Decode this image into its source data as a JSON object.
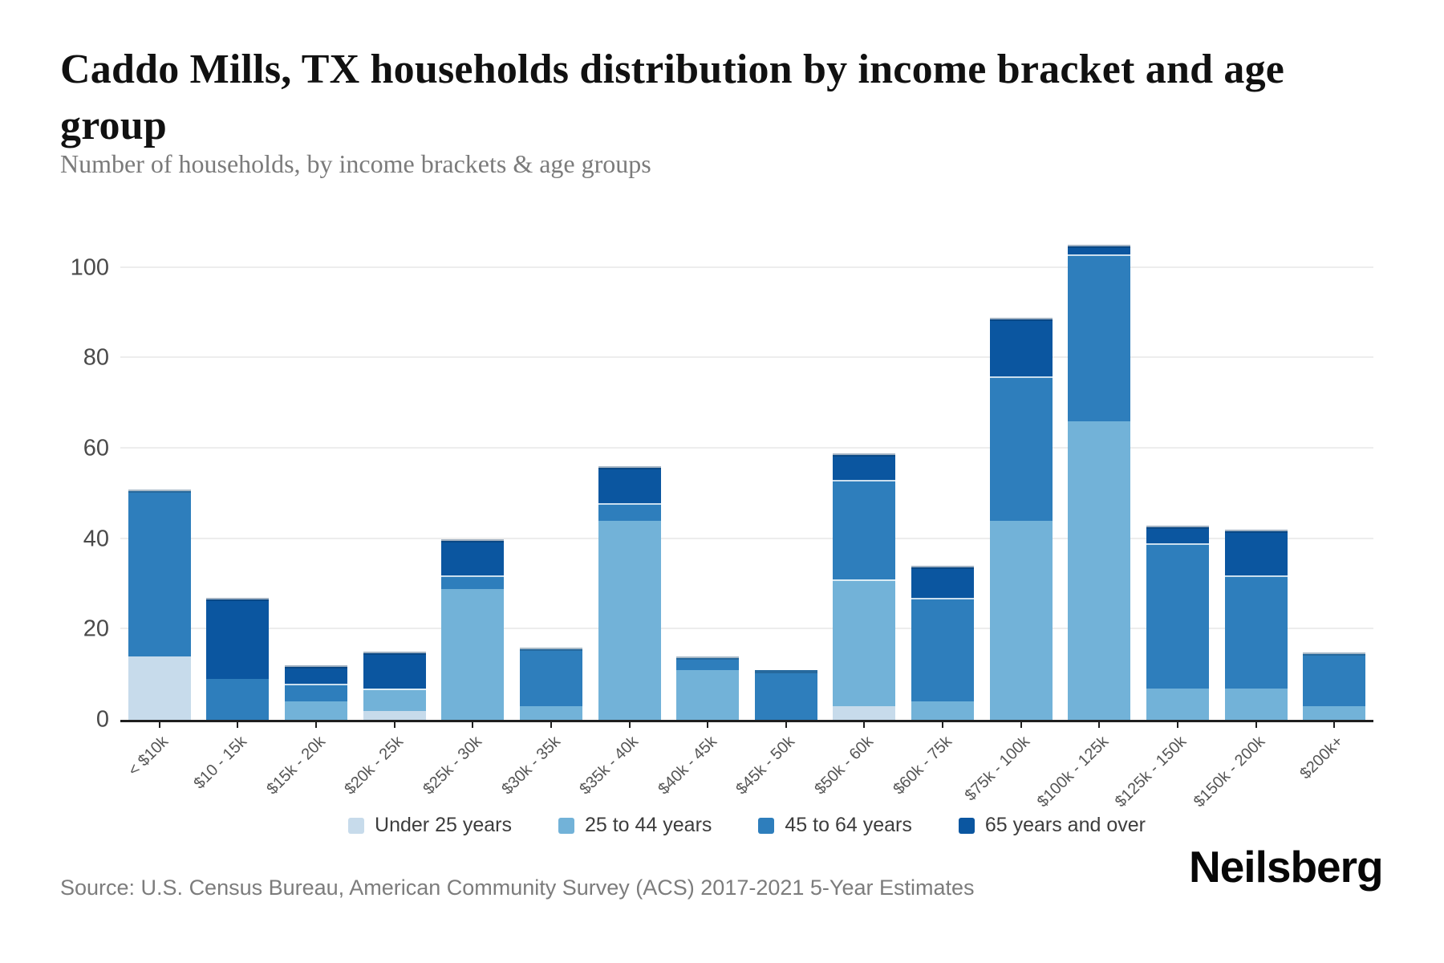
{
  "title": {
    "full": "Caddo Mills, TX households distribution by income bracket and age group",
    "line1": "Caddo Mills, TX households distribution by income bracket and age",
    "line2": "group"
  },
  "subtitle": "Number of households, by income brackets & age groups",
  "source": "Source: U.S. Census Bureau, American Community Survey (ACS) 2017-2021 5-Year Estimates",
  "logo": "Neilsberg",
  "colors": {
    "under_25": "#c7dbeb",
    "age_25_44": "#72b2d8",
    "age_45_64": "#2e7ebc",
    "age_65_over": "#0b56a0",
    "axis_line": "#1f1f1f",
    "gridline": "#ededed",
    "title_text": "#111111",
    "subtitle_text": "#7b7b7b",
    "tick_label": "#4a4a4a",
    "x_label": "#555555",
    "legend_text": "#3d3d3d",
    "source_text": "#7c7c7c"
  },
  "chart_data": {
    "type": "bar",
    "stacked": true,
    "title": "Caddo Mills, TX households distribution by income bracket and age group",
    "subtitle": "Number of households, by income brackets & age groups",
    "xlabel": "",
    "ylabel": "Number of households",
    "grid": true,
    "legend_position": "bottom",
    "ylim": [
      0,
      109
    ],
    "y_ticks": [
      0,
      20,
      40,
      60,
      80,
      100
    ],
    "y_tick_labels": [
      "0",
      "20",
      "40",
      "60",
      "80",
      "100"
    ],
    "categories": [
      "< $10k",
      "$10 - 15k",
      "$15k - 20k",
      "$20k - 25k",
      "$25k - 30k",
      "$30k - 35k",
      "$35k - 40k",
      "$40k - 45k",
      "$45k - 50k",
      "$50k - 60k",
      "$60k - 75k",
      "$75k - 100k",
      "$100k - 125k",
      "$125k - 150k",
      "$150k - 200k",
      "$200k+"
    ],
    "series": [
      {
        "name": "Under 25 years",
        "color": "#c7dbeb",
        "values": [
          14,
          0,
          0,
          2,
          0,
          0,
          0,
          0,
          0,
          3,
          0,
          0,
          0,
          0,
          0,
          0
        ]
      },
      {
        "name": "25 to 44 years",
        "color": "#72b2d8",
        "values": [
          0,
          0,
          4,
          5,
          29,
          3,
          44,
          11,
          0,
          28,
          4,
          44,
          66,
          7,
          7,
          3
        ]
      },
      {
        "name": "45 to 64 years",
        "color": "#2e7ebc",
        "values": [
          37,
          9,
          4,
          0,
          3,
          13,
          4,
          3,
          11,
          22,
          23,
          32,
          37,
          32,
          25,
          12
        ]
      },
      {
        "name": "65 years and over",
        "color": "#0b56a0",
        "values": [
          0,
          18,
          4,
          8,
          8,
          0,
          8,
          0,
          0,
          6,
          7,
          13,
          2,
          4,
          10,
          0
        ]
      }
    ],
    "totals": [
      51,
      27,
      12,
      15,
      40,
      16,
      56,
      14,
      11,
      59,
      34,
      89,
      105,
      43,
      42,
      15
    ]
  }
}
